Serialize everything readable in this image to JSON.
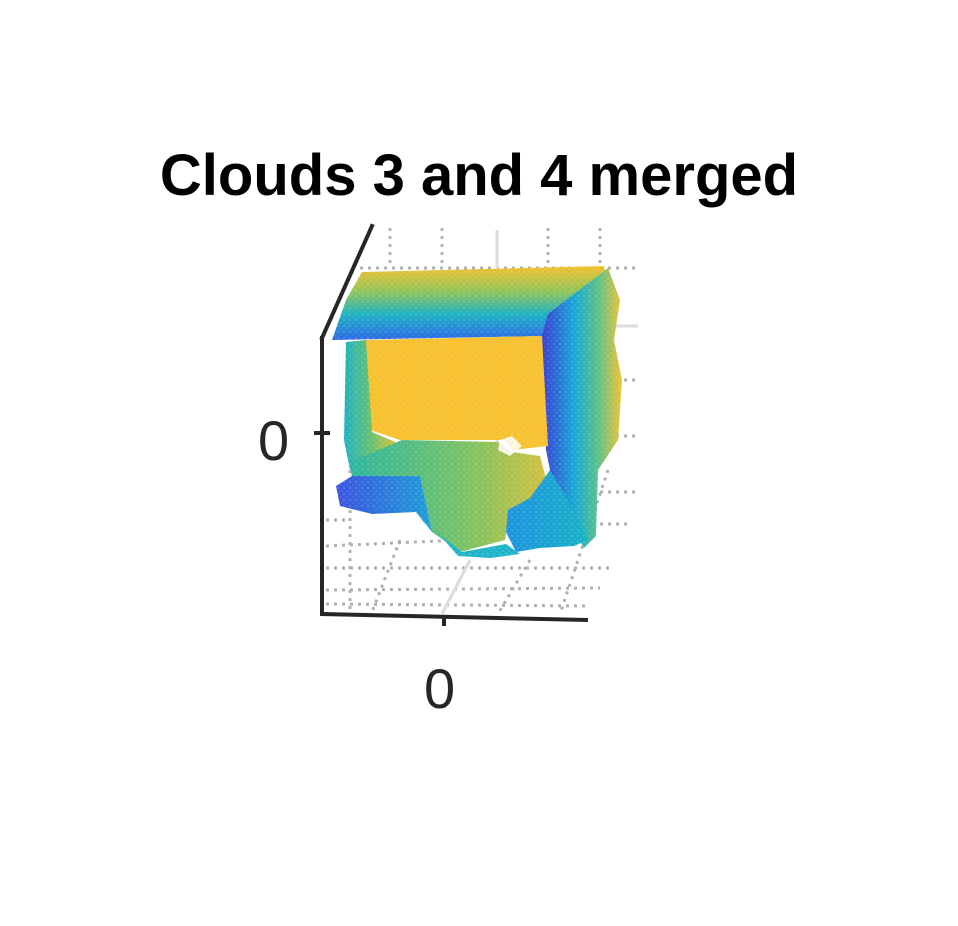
{
  "chart_data": {
    "type": "scatter",
    "subtype": "3d point cloud",
    "title": "Clouds 3 and 4 merged",
    "xlabel": "",
    "ylabel": "",
    "zlabel": "",
    "x_tick_labels": [
      "0"
    ],
    "y_tick_labels": [
      "0"
    ],
    "grid": true,
    "colormap": [
      "#3e26a8",
      "#2f64e6",
      "#10a5d2",
      "#2ebd8f",
      "#a5be4c",
      "#f5bc3a",
      "#f9d72a"
    ]
  }
}
